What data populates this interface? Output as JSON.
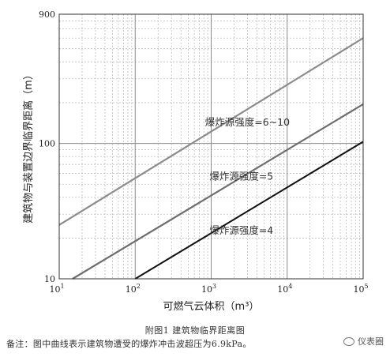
{
  "chart_data": {
    "type": "line",
    "x_scale": "log",
    "y_scale": "log",
    "xlim": [
      10,
      100000
    ],
    "ylim": [
      10,
      900
    ],
    "x_ticks": [
      10,
      100,
      1000,
      10000,
      100000
    ],
    "x_tick_labels": [
      {
        "base": "10",
        "exp": "1"
      },
      {
        "base": "10",
        "exp": "2"
      },
      {
        "base": "10",
        "exp": "3"
      },
      {
        "base": "10",
        "exp": "4"
      },
      {
        "base": "10",
        "exp": "5"
      }
    ],
    "y_ticks": [
      10,
      100,
      900
    ],
    "y_tick_labels": [
      "10",
      "100",
      "900"
    ],
    "xlabel": "可燃气云体积（m³）",
    "ylabel": "建筑物与装置边界临界距离（m）",
    "grid": true,
    "series": [
      {
        "name": "爆炸源强度=6~10",
        "color": "#8c8c8c",
        "x": [
          10,
          100000
        ],
        "y": [
          25,
          600
        ]
      },
      {
        "name": "爆炸源强度=5",
        "color": "#6e6e6e",
        "x": [
          15,
          100000
        ],
        "y": [
          10,
          195
        ]
      },
      {
        "name": "爆炸源强度=4",
        "color": "#111111",
        "x": [
          100,
          100000
        ],
        "y": [
          10,
          103
        ]
      }
    ]
  },
  "caption": "附图1  建筑物临界距离图",
  "note": "备注：图中曲线表示建筑物遭受的爆炸冲击波超压为6.9kPa。",
  "watermark": "仪表圈"
}
